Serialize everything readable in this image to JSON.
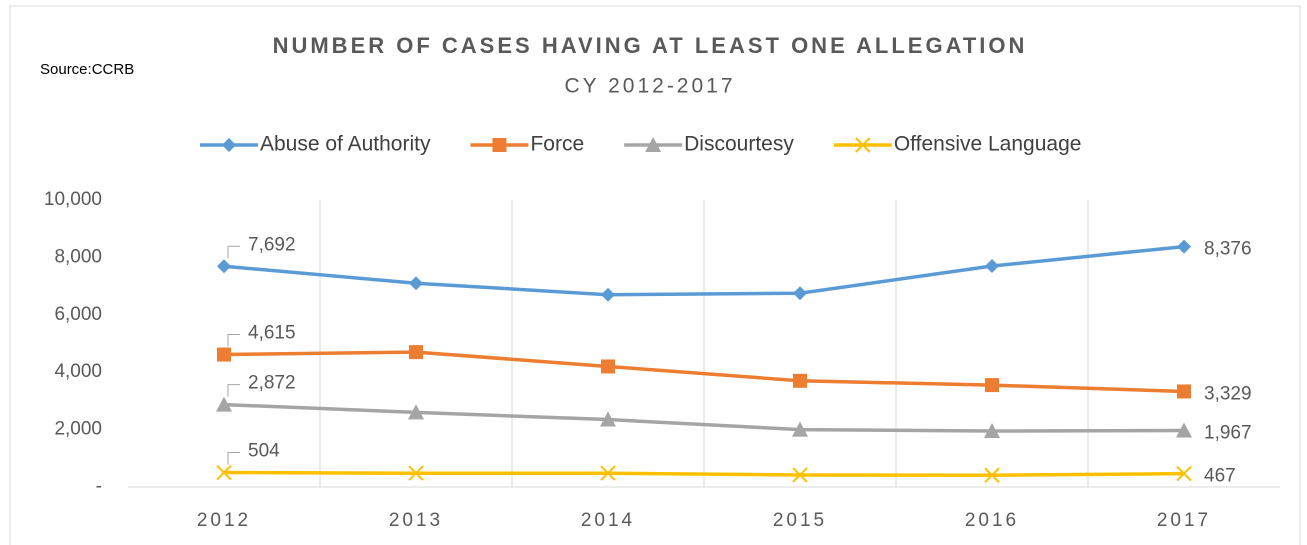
{
  "chart_data": {
    "type": "line",
    "title": "NUMBER OF CASES HAVING AT LEAST ONE ALLEGATION",
    "subtitle": "CY 2012-2017",
    "source": "Source:CCRB",
    "categories": [
      "2012",
      "2013",
      "2014",
      "2015",
      "2016",
      "2017"
    ],
    "series": [
      {
        "name": "Abuse of Authority",
        "color": "#5b9bd5",
        "marker": "diamond",
        "values": [
          7692,
          7100,
          6700,
          6750,
          7700,
          8376
        ],
        "value_labels": [
          "7,692",
          null,
          null,
          null,
          null,
          "8,376"
        ]
      },
      {
        "name": "Force",
        "color": "#ed7d31",
        "marker": "square",
        "values": [
          4615,
          4700,
          4200,
          3700,
          3550,
          3329
        ],
        "value_labels": [
          "4,615",
          null,
          null,
          null,
          null,
          "3,329"
        ]
      },
      {
        "name": "Discourtesy",
        "color": "#a5a5a5",
        "marker": "triangle",
        "values": [
          2872,
          2600,
          2350,
          2000,
          1950,
          1967
        ],
        "value_labels": [
          "2,872",
          null,
          null,
          null,
          null,
          "1,967"
        ]
      },
      {
        "name": "Offensive Language",
        "color": "#ffc000",
        "marker": "x",
        "values": [
          504,
          480,
          480,
          420,
          410,
          467
        ],
        "value_labels": [
          "504",
          null,
          null,
          null,
          null,
          "467"
        ]
      }
    ],
    "ylim": [
      0,
      10000
    ],
    "yticks": [
      {
        "value": 0,
        "label": "-"
      },
      {
        "value": 2000,
        "label": "2,000"
      },
      {
        "value": 4000,
        "label": "4,000"
      },
      {
        "value": 6000,
        "label": "6,000"
      },
      {
        "value": 8000,
        "label": "8,000"
      },
      {
        "value": 10000,
        "label": "10,000"
      }
    ],
    "grid": "x",
    "legend": "top"
  }
}
